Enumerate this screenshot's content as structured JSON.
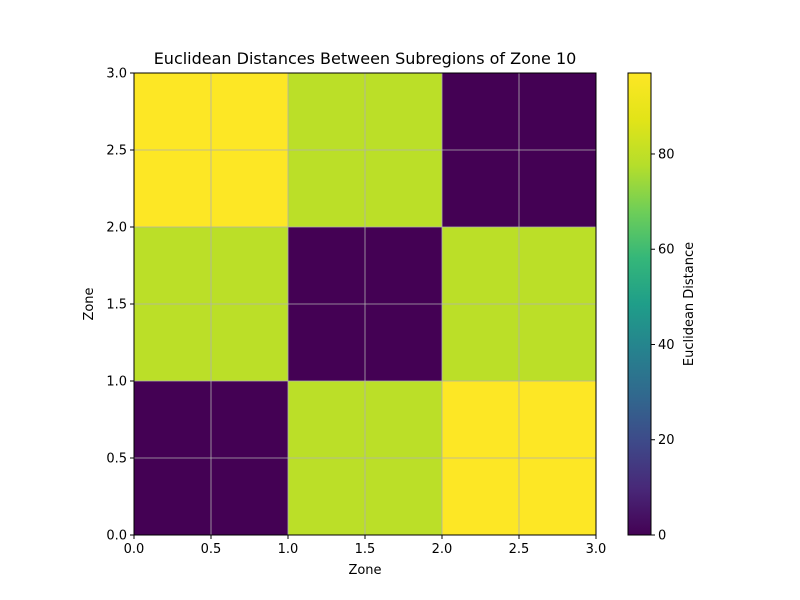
{
  "chart_data": {
    "type": "heatmap",
    "title": "Euclidean Distances Between Subregions of Zone 10",
    "xlabel": "Zone",
    "ylabel": "Zone",
    "x_edges": [
      0,
      1,
      2,
      3
    ],
    "y_edges": [
      0,
      1,
      2,
      3
    ],
    "xlim": [
      0,
      3
    ],
    "ylim": [
      0,
      3
    ],
    "x_ticks": [
      0.0,
      0.5,
      1.0,
      1.5,
      2.0,
      2.5,
      3.0
    ],
    "y_ticks": [
      0.0,
      0.5,
      1.0,
      1.5,
      2.0,
      2.5,
      3.0
    ],
    "x_tick_labels": [
      "0.0",
      "0.5",
      "1.0",
      "1.5",
      "2.0",
      "2.5",
      "3.0"
    ],
    "y_tick_labels": [
      "0.0",
      "0.5",
      "1.0",
      "1.5",
      "2.0",
      "2.5",
      "3.0"
    ],
    "grid": true,
    "values": [
      [
        0,
        79,
        97
      ],
      [
        79,
        0,
        79
      ],
      [
        97,
        79,
        0
      ]
    ],
    "colorbar": {
      "label": "Euclidean Distance",
      "min": 0,
      "max": 97,
      "ticks": [
        0,
        20,
        40,
        60,
        80
      ],
      "tick_labels": [
        "0",
        "20",
        "40",
        "60",
        "80"
      ],
      "colormap": "viridis"
    }
  }
}
